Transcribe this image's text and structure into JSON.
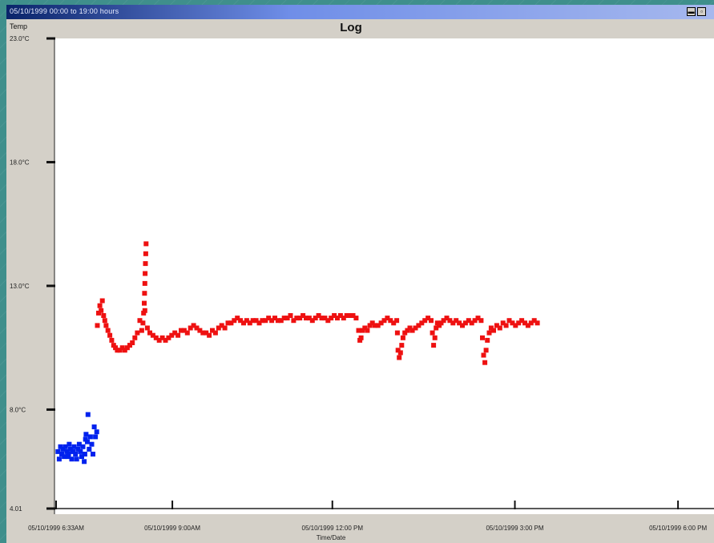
{
  "window": {
    "title": "05/10/1999 00:00 to 19:00 hours"
  },
  "chart_data": {
    "type": "scatter",
    "title": "Log",
    "ylabel": "Temp",
    "xlabel": "Time/Date",
    "ylim": [
      4.0,
      23.0
    ],
    "y_ticks": [
      {
        "value": 23.0,
        "label": "23.0°C"
      },
      {
        "value": 18.0,
        "label": "18.0°C"
      },
      {
        "value": 13.0,
        "label": "13.0°C"
      },
      {
        "value": 8.0,
        "label": "8.0°C"
      },
      {
        "value": 4.0,
        "label": "4.01"
      }
    ],
    "xlim": [
      0,
      100
    ],
    "x_ticks": [
      {
        "value": 0,
        "label": "05/10/1999 6:33AM"
      },
      {
        "value": 18.6,
        "label": "05/10/1999 9:00AM"
      },
      {
        "value": 44.2,
        "label": "05/10/1999 12:00 PM"
      },
      {
        "value": 73.4,
        "label": "05/10/1999 3:00 PM"
      },
      {
        "value": 99.5,
        "label": "05/10/1999 6:00 PM"
      }
    ],
    "grid": false,
    "series": [
      {
        "color": "#0022ee",
        "points": [
          [
            0.3,
            6.3
          ],
          [
            0.5,
            6.0
          ],
          [
            0.7,
            6.5
          ],
          [
            0.9,
            6.2
          ],
          [
            1.1,
            6.4
          ],
          [
            1.3,
            6.1
          ],
          [
            1.5,
            6.5
          ],
          [
            1.7,
            6.3
          ],
          [
            1.9,
            6.1
          ],
          [
            2.1,
            6.6
          ],
          [
            2.3,
            6.4
          ],
          [
            2.5,
            6.0
          ],
          [
            2.7,
            6.3
          ],
          [
            2.9,
            6.5
          ],
          [
            3.1,
            6.2
          ],
          [
            3.3,
            6.0
          ],
          [
            3.5,
            6.4
          ],
          [
            3.7,
            6.6
          ],
          [
            3.9,
            6.3
          ],
          [
            4.1,
            6.1
          ],
          [
            4.3,
            6.5
          ],
          [
            4.5,
            5.9
          ],
          [
            4.6,
            6.2
          ],
          [
            4.8,
            7.0
          ],
          [
            5.0,
            6.7
          ],
          [
            5.1,
            7.8
          ],
          [
            5.3,
            6.4
          ],
          [
            5.5,
            6.9
          ],
          [
            5.7,
            6.6
          ],
          [
            5.9,
            6.2
          ],
          [
            6.1,
            7.3
          ],
          [
            6.3,
            6.9
          ],
          [
            6.5,
            7.1
          ],
          [
            4.7,
            6.8
          ],
          [
            2.0,
            6.2
          ]
        ]
      },
      {
        "color": "#ee1111",
        "points": [
          [
            6.6,
            11.4
          ],
          [
            6.8,
            11.9
          ],
          [
            7.0,
            12.2
          ],
          [
            7.2,
            12.0
          ],
          [
            7.4,
            12.4
          ],
          [
            7.6,
            11.8
          ],
          [
            7.8,
            11.6
          ],
          [
            8.0,
            11.4
          ],
          [
            8.3,
            11.2
          ],
          [
            8.6,
            11.0
          ],
          [
            8.9,
            10.8
          ],
          [
            9.2,
            10.6
          ],
          [
            9.5,
            10.5
          ],
          [
            9.8,
            10.4
          ],
          [
            10.2,
            10.4
          ],
          [
            10.6,
            10.5
          ],
          [
            11.0,
            10.4
          ],
          [
            11.4,
            10.5
          ],
          [
            11.8,
            10.6
          ],
          [
            12.2,
            10.7
          ],
          [
            12.6,
            10.9
          ],
          [
            13.0,
            11.1
          ],
          [
            13.4,
            11.6
          ],
          [
            13.7,
            11.2
          ],
          [
            13.9,
            11.5
          ],
          [
            14.0,
            11.9
          ],
          [
            14.1,
            12.3
          ],
          [
            14.15,
            12.7
          ],
          [
            14.2,
            13.1
          ],
          [
            14.25,
            13.5
          ],
          [
            14.3,
            13.9
          ],
          [
            14.35,
            14.3
          ],
          [
            14.4,
            14.7
          ],
          [
            14.2,
            12.0
          ],
          [
            14.6,
            11.3
          ],
          [
            15.0,
            11.1
          ],
          [
            15.5,
            11.0
          ],
          [
            16.0,
            10.9
          ],
          [
            16.5,
            10.8
          ],
          [
            17.0,
            10.9
          ],
          [
            17.5,
            10.8
          ],
          [
            18.0,
            10.9
          ],
          [
            18.5,
            11.0
          ],
          [
            19.0,
            11.1
          ],
          [
            19.5,
            11.0
          ],
          [
            20.0,
            11.2
          ],
          [
            20.5,
            11.2
          ],
          [
            21.0,
            11.1
          ],
          [
            21.5,
            11.3
          ],
          [
            22.0,
            11.4
          ],
          [
            22.5,
            11.3
          ],
          [
            23.0,
            11.2
          ],
          [
            23.5,
            11.1
          ],
          [
            24.0,
            11.1
          ],
          [
            24.5,
            11.0
          ],
          [
            25.0,
            11.2
          ],
          [
            25.5,
            11.1
          ],
          [
            26.0,
            11.3
          ],
          [
            26.5,
            11.4
          ],
          [
            27.0,
            11.3
          ],
          [
            27.5,
            11.5
          ],
          [
            28.0,
            11.5
          ],
          [
            28.5,
            11.6
          ],
          [
            29.0,
            11.7
          ],
          [
            29.5,
            11.6
          ],
          [
            30.0,
            11.5
          ],
          [
            30.5,
            11.6
          ],
          [
            31.0,
            11.5
          ],
          [
            31.5,
            11.6
          ],
          [
            32.0,
            11.6
          ],
          [
            32.5,
            11.5
          ],
          [
            33.0,
            11.6
          ],
          [
            33.5,
            11.6
          ],
          [
            34.0,
            11.7
          ],
          [
            34.5,
            11.6
          ],
          [
            35.0,
            11.7
          ],
          [
            35.5,
            11.6
          ],
          [
            36.0,
            11.6
          ],
          [
            36.5,
            11.7
          ],
          [
            37.0,
            11.7
          ],
          [
            37.5,
            11.8
          ],
          [
            38.0,
            11.6
          ],
          [
            38.5,
            11.7
          ],
          [
            39.0,
            11.7
          ],
          [
            39.5,
            11.8
          ],
          [
            40.0,
            11.7
          ],
          [
            40.5,
            11.7
          ],
          [
            41.0,
            11.6
          ],
          [
            41.5,
            11.7
          ],
          [
            42.0,
            11.8
          ],
          [
            42.5,
            11.7
          ],
          [
            43.0,
            11.7
          ],
          [
            43.5,
            11.6
          ],
          [
            44.0,
            11.7
          ],
          [
            44.5,
            11.8
          ],
          [
            45.0,
            11.7
          ],
          [
            45.5,
            11.8
          ],
          [
            46.0,
            11.7
          ],
          [
            46.5,
            11.8
          ],
          [
            47.0,
            11.8
          ],
          [
            47.5,
            11.8
          ],
          [
            48.0,
            11.7
          ],
          [
            48.4,
            11.2
          ],
          [
            48.6,
            10.8
          ],
          [
            48.8,
            10.9
          ],
          [
            49.0,
            11.2
          ],
          [
            49.4,
            11.3
          ],
          [
            49.8,
            11.2
          ],
          [
            50.2,
            11.4
          ],
          [
            50.6,
            11.5
          ],
          [
            51.0,
            11.4
          ],
          [
            51.5,
            11.4
          ],
          [
            52.0,
            11.5
          ],
          [
            52.5,
            11.6
          ],
          [
            53.0,
            11.7
          ],
          [
            53.5,
            11.6
          ],
          [
            54.0,
            11.5
          ],
          [
            54.5,
            11.6
          ],
          [
            54.6,
            11.1
          ],
          [
            54.7,
            10.4
          ],
          [
            54.9,
            10.1
          ],
          [
            55.1,
            10.3
          ],
          [
            55.3,
            10.6
          ],
          [
            55.5,
            10.9
          ],
          [
            55.8,
            11.1
          ],
          [
            56.2,
            11.2
          ],
          [
            56.6,
            11.3
          ],
          [
            57.0,
            11.2
          ],
          [
            57.5,
            11.3
          ],
          [
            58.0,
            11.4
          ],
          [
            58.5,
            11.5
          ],
          [
            59.0,
            11.6
          ],
          [
            59.5,
            11.7
          ],
          [
            60.0,
            11.6
          ],
          [
            60.2,
            11.1
          ],
          [
            60.4,
            10.6
          ],
          [
            60.6,
            10.9
          ],
          [
            60.8,
            11.3
          ],
          [
            61.0,
            11.5
          ],
          [
            61.3,
            11.4
          ],
          [
            61.6,
            11.5
          ],
          [
            62.0,
            11.6
          ],
          [
            62.5,
            11.7
          ],
          [
            63.0,
            11.6
          ],
          [
            63.5,
            11.5
          ],
          [
            64.0,
            11.6
          ],
          [
            64.5,
            11.5
          ],
          [
            65.0,
            11.4
          ],
          [
            65.5,
            11.5
          ],
          [
            66.0,
            11.6
          ],
          [
            66.5,
            11.5
          ],
          [
            67.0,
            11.6
          ],
          [
            67.5,
            11.7
          ],
          [
            68.0,
            11.6
          ],
          [
            68.2,
            10.9
          ],
          [
            68.4,
            10.2
          ],
          [
            68.6,
            9.9
          ],
          [
            68.8,
            10.4
          ],
          [
            69.0,
            10.8
          ],
          [
            69.3,
            11.1
          ],
          [
            69.6,
            11.3
          ],
          [
            70.0,
            11.2
          ],
          [
            70.5,
            11.4
          ],
          [
            71.0,
            11.3
          ],
          [
            71.5,
            11.5
          ],
          [
            72.0,
            11.4
          ],
          [
            72.5,
            11.6
          ],
          [
            73.0,
            11.5
          ],
          [
            73.5,
            11.4
          ],
          [
            74.0,
            11.5
          ],
          [
            74.5,
            11.6
          ],
          [
            75.0,
            11.5
          ],
          [
            75.5,
            11.4
          ],
          [
            76.0,
            11.5
          ],
          [
            76.5,
            11.6
          ],
          [
            77.0,
            11.5
          ]
        ]
      }
    ]
  }
}
